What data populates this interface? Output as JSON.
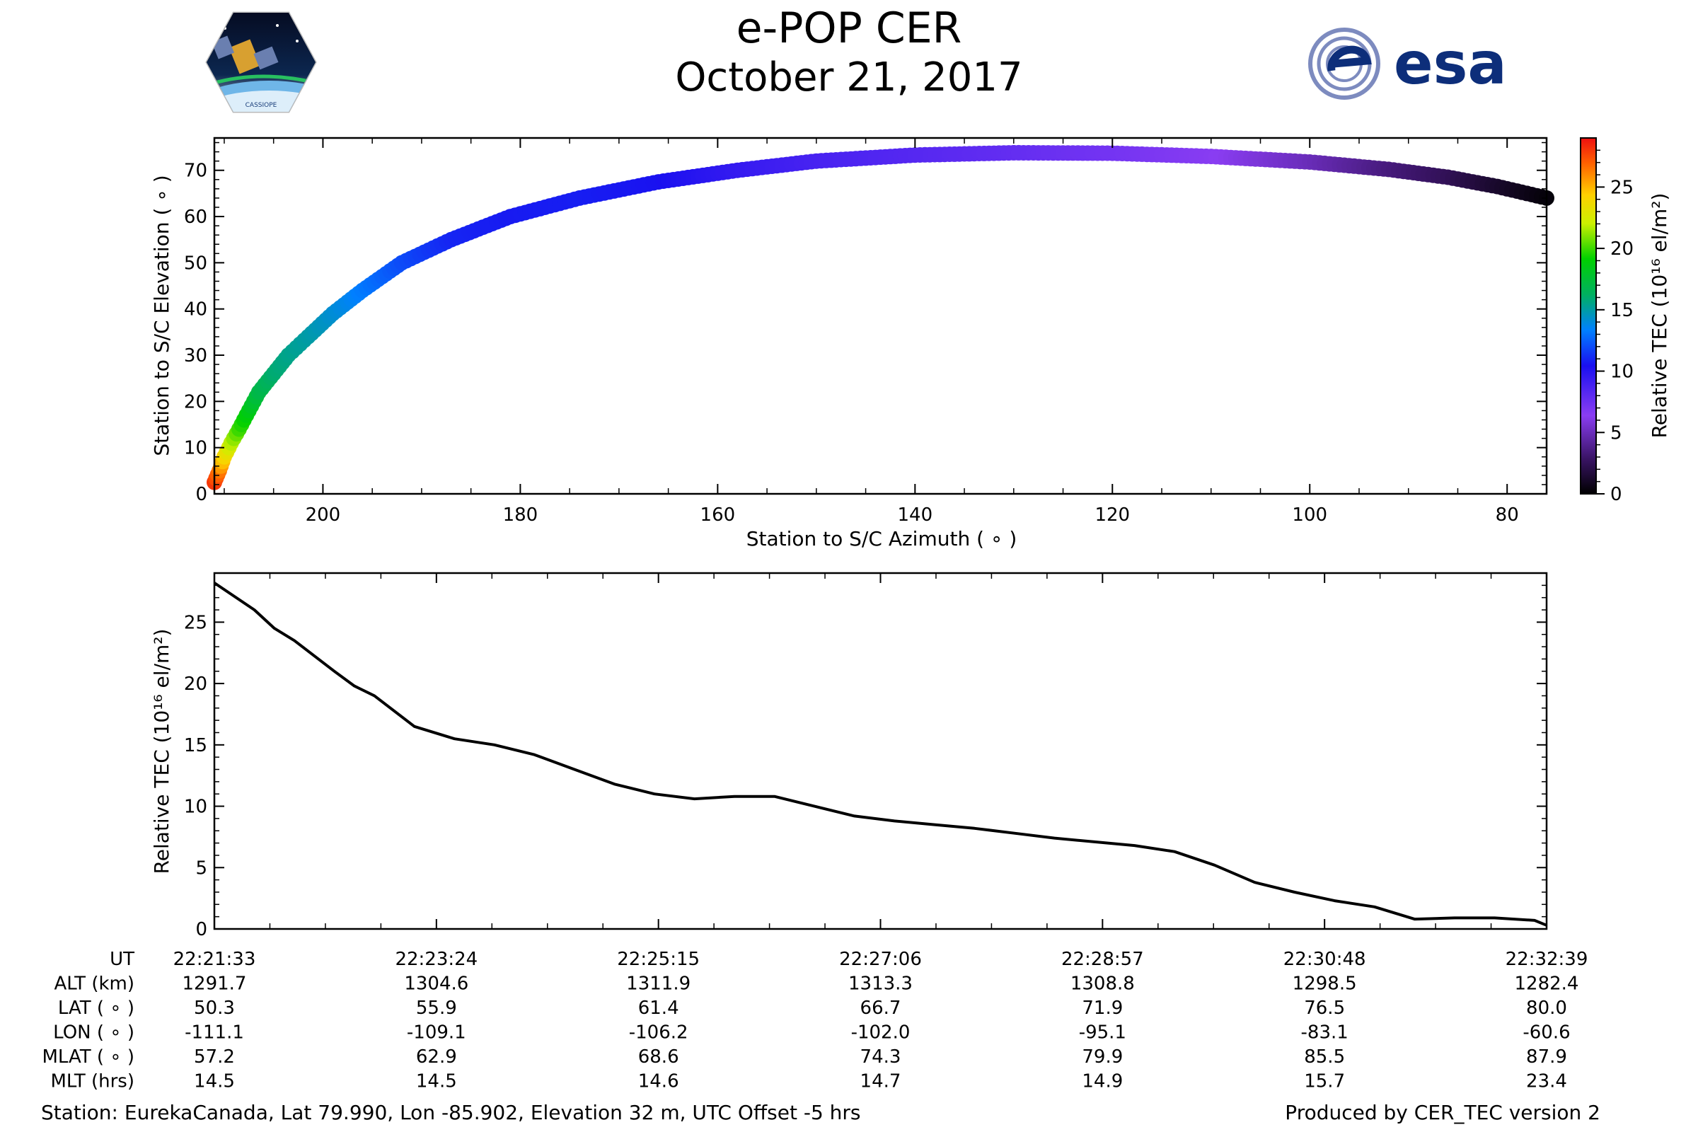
{
  "title": "e-POP CER",
  "date": "October 21, 2017",
  "logos": {
    "left": "CASSIOPE",
    "right": "esa"
  },
  "footer": {
    "station": "Station: EurekaCanada, Lat 79.990, Lon -85.902, Elevation 32 m, UTC Offset -5 hrs",
    "producer": "Produced by CER_TEC version 2"
  },
  "colors": {
    "line": "#000000",
    "background": "#ffffff"
  },
  "chart_data": [
    {
      "type": "scatter",
      "name": "elevation_vs_azimuth",
      "xlabel": "Station to S/C Azimuth ( ∘ )",
      "ylabel": "Station to S/C Elevation ( ∘ )",
      "xlim": [
        211,
        76
      ],
      "ylim": [
        0,
        77
      ],
      "xticks": [
        200,
        180,
        160,
        140,
        120,
        100,
        80
      ],
      "yticks": [
        0,
        10,
        20,
        30,
        40,
        50,
        60,
        70
      ],
      "color_by": "Relative TEC",
      "points": [
        {
          "az": 211.0,
          "el": 2.5,
          "tec": 28.0
        },
        {
          "az": 210.5,
          "el": 5,
          "tec": 26.5
        },
        {
          "az": 210.0,
          "el": 8,
          "tec": 24.0
        },
        {
          "az": 209.3,
          "el": 11,
          "tec": 21.8
        },
        {
          "az": 208.5,
          "el": 14,
          "tec": 20.0
        },
        {
          "az": 207.5,
          "el": 18,
          "tec": 18.5
        },
        {
          "az": 206.5,
          "el": 22,
          "tec": 17.0
        },
        {
          "az": 205.0,
          "el": 26,
          "tec": 16.0
        },
        {
          "az": 203.5,
          "el": 30,
          "tec": 15.5
        },
        {
          "az": 201.5,
          "el": 34,
          "tec": 15.0
        },
        {
          "az": 199.0,
          "el": 39,
          "tec": 14.2
        },
        {
          "az": 196.0,
          "el": 44,
          "tec": 13.2
        },
        {
          "az": 192.0,
          "el": 50,
          "tec": 12.0
        },
        {
          "az": 187.0,
          "el": 55,
          "tec": 11.0
        },
        {
          "az": 181.0,
          "el": 60,
          "tec": 10.7
        },
        {
          "az": 174.0,
          "el": 64,
          "tec": 10.8
        },
        {
          "az": 166.0,
          "el": 67.5,
          "tec": 10.5
        },
        {
          "az": 158.0,
          "el": 70,
          "tec": 9.5
        },
        {
          "az": 150.0,
          "el": 72,
          "tec": 8.8
        },
        {
          "az": 140.0,
          "el": 73.3,
          "tec": 8.3
        },
        {
          "az": 130.0,
          "el": 73.8,
          "tec": 7.8
        },
        {
          "az": 120.0,
          "el": 73.7,
          "tec": 7.2
        },
        {
          "az": 110.0,
          "el": 73.0,
          "tec": 6.5
        },
        {
          "az": 100.0,
          "el": 71.8,
          "tec": 5.0
        },
        {
          "az": 92.0,
          "el": 70.2,
          "tec": 3.5
        },
        {
          "az": 86.0,
          "el": 68.5,
          "tec": 2.5
        },
        {
          "az": 81.0,
          "el": 66.5,
          "tec": 1.3
        },
        {
          "az": 76.0,
          "el": 64.0,
          "tec": 0.3
        }
      ]
    },
    {
      "type": "line",
      "name": "tec_vs_time",
      "ylabel": "Relative TEC (10¹⁶ el/m²)",
      "xlim_seconds": [
        0,
        666
      ],
      "ylim": [
        0,
        29
      ],
      "yticks": [
        0,
        5,
        10,
        15,
        20,
        25
      ],
      "x_seconds": [
        0,
        20,
        30,
        40,
        60,
        70,
        80,
        100,
        120,
        140,
        160,
        180,
        200,
        220,
        240,
        260,
        280,
        300,
        320,
        340,
        360,
        380,
        400,
        420,
        440,
        460,
        480,
        500,
        520,
        540,
        560,
        580,
        600,
        620,
        640,
        660,
        666
      ],
      "values": [
        28.2,
        26.0,
        24.5,
        23.5,
        21.0,
        19.8,
        19.0,
        16.5,
        15.5,
        15.0,
        14.2,
        13.0,
        11.8,
        11.0,
        10.6,
        10.8,
        10.8,
        10.0,
        9.2,
        8.8,
        8.5,
        8.2,
        7.8,
        7.4,
        7.1,
        6.8,
        6.3,
        5.2,
        3.8,
        3.0,
        2.3,
        1.8,
        0.8,
        0.9,
        0.9,
        0.7,
        0.3
      ],
      "xticks": [
        "22:21:33",
        "22:23:24",
        "22:25:15",
        "22:27:06",
        "22:28:57",
        "22:30:48",
        "22:32:39"
      ]
    }
  ],
  "colorbar": {
    "label": "Relative TEC (10¹⁶ el/m²)",
    "range": [
      0,
      29
    ],
    "ticks": [
      0,
      5,
      10,
      15,
      20,
      25
    ]
  },
  "info_table": {
    "rows": [
      {
        "label": "UT",
        "values": [
          "22:21:33",
          "22:23:24",
          "22:25:15",
          "22:27:06",
          "22:28:57",
          "22:30:48",
          "22:32:39"
        ]
      },
      {
        "label": "ALT (km)",
        "values": [
          "1291.7",
          "1304.6",
          "1311.9",
          "1313.3",
          "1308.8",
          "1298.5",
          "1282.4"
        ]
      },
      {
        "label": "LAT ( ∘ )",
        "values": [
          "50.3",
          "55.9",
          "61.4",
          "66.7",
          "71.9",
          "76.5",
          "80.0"
        ]
      },
      {
        "label": "LON ( ∘ )",
        "values": [
          "-111.1",
          "-109.1",
          "-106.2",
          "-102.0",
          "-95.1",
          "-83.1",
          "-60.6"
        ]
      },
      {
        "label": "MLAT ( ∘ )",
        "values": [
          "57.2",
          "62.9",
          "68.6",
          "74.3",
          "79.9",
          "85.5",
          "87.9"
        ]
      },
      {
        "label": "MLT (hrs)",
        "values": [
          "14.5",
          "14.5",
          "14.6",
          "14.7",
          "14.9",
          "15.7",
          "23.4"
        ]
      }
    ]
  }
}
